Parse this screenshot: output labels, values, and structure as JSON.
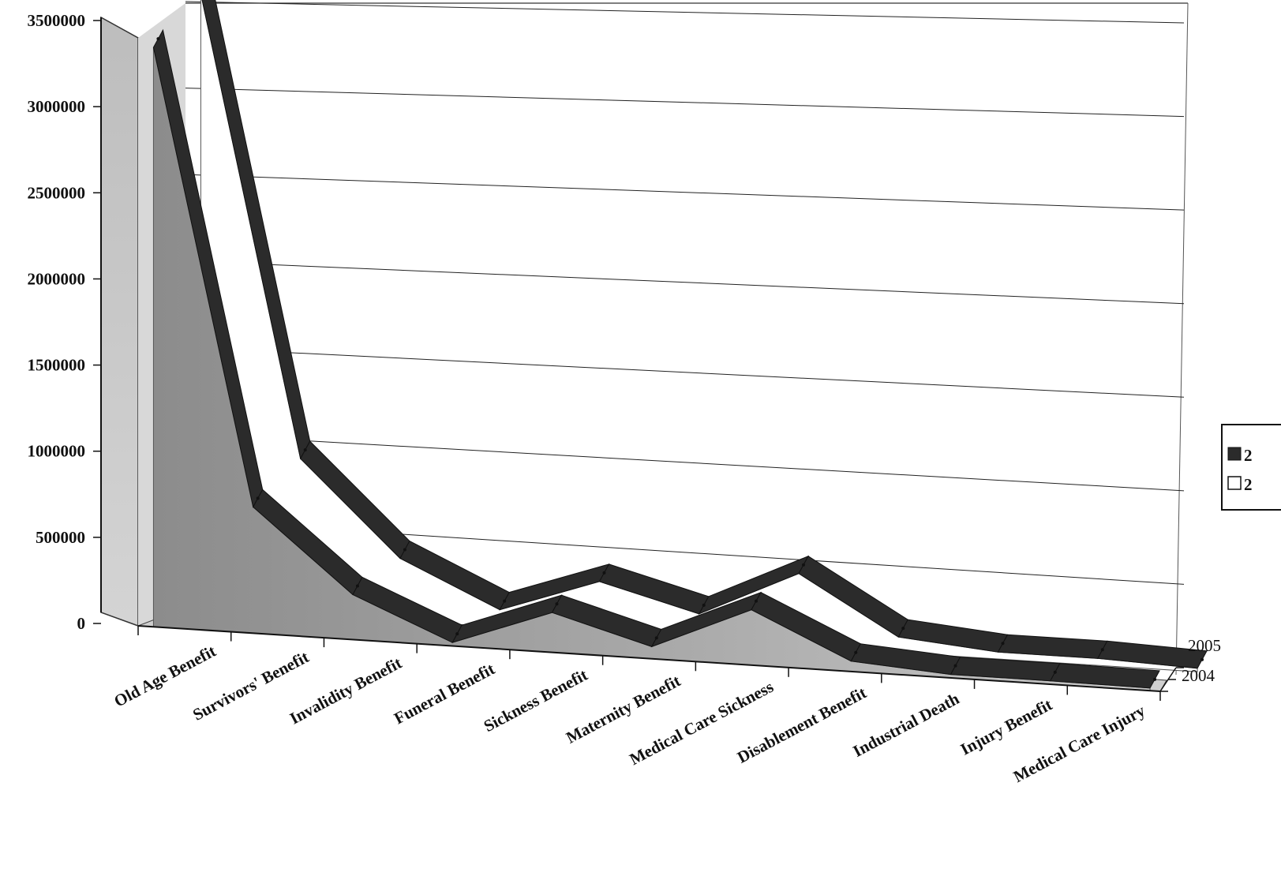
{
  "chart_data": {
    "type": "area",
    "view": "3d",
    "categories": [
      "Old Age Benefit",
      "Survivors' Benefit",
      "Invalidity Benefit",
      "Funeral Benefit",
      "Sickness Benefit",
      "Maternity Benefit",
      "Medical Care Sickness",
      "Disablement Benefit",
      "Industrial Death",
      "Injury Benefit",
      "Medical Care Injury"
    ],
    "series": [
      {
        "name": "2004",
        "values": [
          3350000,
          730000,
          260000,
          20000,
          230000,
          70000,
          320000,
          60000,
          20000,
          20000,
          15000
        ]
      },
      {
        "name": "2005",
        "values": [
          3550000,
          900000,
          360000,
          100000,
          300000,
          150000,
          420000,
          90000,
          40000,
          40000,
          20000
        ]
      }
    ],
    "depth_labels": [
      "2005",
      "2004"
    ],
    "legend_labels": [
      "2",
      "2"
    ],
    "yticks": [
      "0",
      "500000",
      "1000000",
      "1500000",
      "2000000",
      "2500000",
      "3000000",
      "3500000"
    ],
    "ylim": [
      0,
      3500000
    ],
    "legend": "right",
    "grid": true,
    "colors": {
      "band": "#2b2b2b",
      "fill_front": "#9a9a9a",
      "fill_back": "#ffffff",
      "grid": "#222222"
    }
  }
}
